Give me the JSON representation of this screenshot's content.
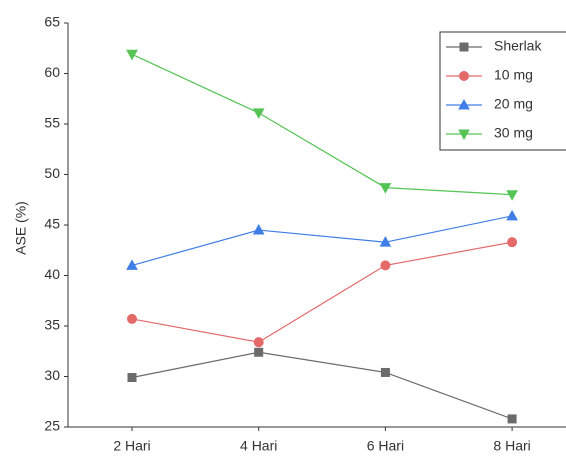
{
  "chart_data": {
    "type": "line",
    "y_label": "ASE (%)",
    "categories": [
      "2 Hari",
      "4 Hari",
      "6 Hari",
      "8 Hari"
    ],
    "series": [
      {
        "name": "Sherlak",
        "color": "#6b6b6b",
        "marker": "square",
        "values": [
          29.9,
          32.4,
          30.4,
          25.8
        ]
      },
      {
        "name": "10 mg",
        "color": "#e46a6a",
        "marker": "circle",
        "values": [
          35.7,
          33.4,
          41.0,
          43.3
        ]
      },
      {
        "name": "20 mg",
        "color": "#3f7ee6",
        "marker": "triangle-up",
        "values": [
          41.0,
          44.5,
          43.3,
          45.9
        ]
      },
      {
        "name": "30 mg",
        "color": "#55c455",
        "marker": "triangle-down",
        "values": [
          61.9,
          56.1,
          48.7,
          48.0
        ]
      }
    ],
    "ylim": [
      25,
      65
    ],
    "yticks": [
      25,
      30,
      35,
      40,
      45,
      50,
      55,
      60,
      65
    ],
    "legend": "upper right"
  }
}
